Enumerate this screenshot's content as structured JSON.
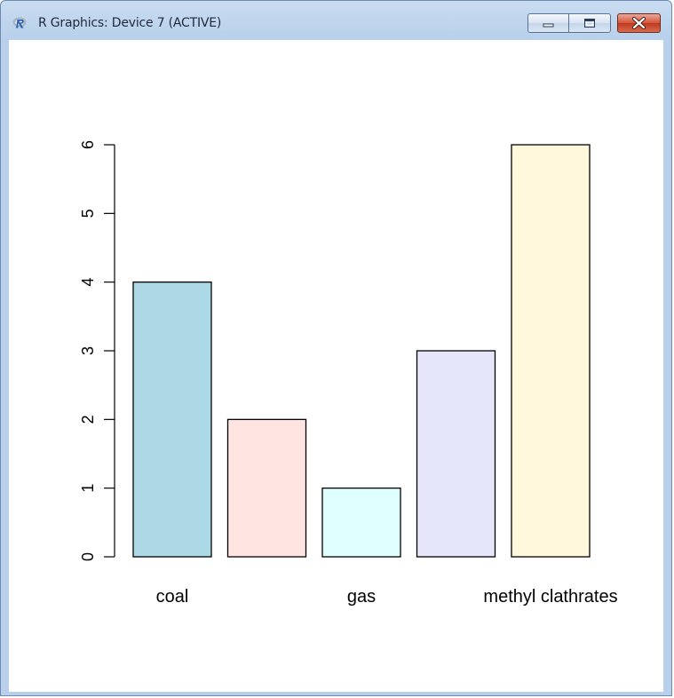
{
  "window": {
    "title": "R Graphics: Device 7 (ACTIVE)",
    "buttons": {
      "minimize": "minimize",
      "maximize": "maximize",
      "close": "close"
    },
    "icons": {
      "app": "r-logo-icon",
      "minimize": "minimize-icon",
      "maximize": "maximize-icon",
      "close": "close-icon"
    }
  },
  "chart_data": {
    "type": "bar",
    "categories": [
      "coal",
      "",
      "gas",
      "",
      "methyl clathrates"
    ],
    "values": [
      4,
      2,
      1,
      3,
      6
    ],
    "colors": [
      "#add8e6",
      "#ffe4e1",
      "#e0ffff",
      "#e6e6fa",
      "#fff8dc"
    ],
    "y_ticks": [
      0,
      1,
      2,
      3,
      4,
      5,
      6
    ],
    "ylim": [
      0,
      6
    ],
    "title": "",
    "xlabel": "",
    "ylabel": "",
    "grid": false,
    "legend": "none"
  }
}
